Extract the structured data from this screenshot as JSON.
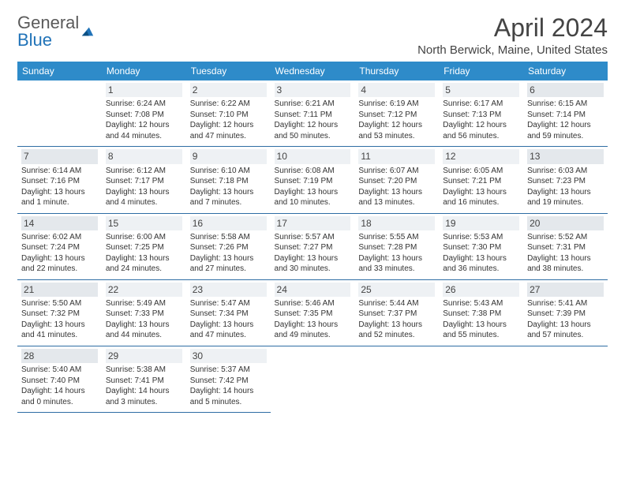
{
  "colors": {
    "header_bg": "#2e8bc9",
    "header_text": "#ffffff",
    "border": "#2e6da4",
    "daynum_bg": "#eef1f4",
    "daynum_bg_shade": "#e4e8ec",
    "text": "#333333",
    "logo_gray": "#5a5a5a",
    "logo_blue": "#2173b8"
  },
  "logo": {
    "word1": "General",
    "word2": "Blue"
  },
  "title": "April 2024",
  "location": "North Berwick, Maine, United States",
  "day_headers": [
    "Sunday",
    "Monday",
    "Tuesday",
    "Wednesday",
    "Thursday",
    "Friday",
    "Saturday"
  ],
  "weeks": [
    [
      null,
      {
        "n": "1",
        "sr": "Sunrise: 6:24 AM",
        "ss": "Sunset: 7:08 PM",
        "d1": "Daylight: 12 hours",
        "d2": "and 44 minutes."
      },
      {
        "n": "2",
        "sr": "Sunrise: 6:22 AM",
        "ss": "Sunset: 7:10 PM",
        "d1": "Daylight: 12 hours",
        "d2": "and 47 minutes."
      },
      {
        "n": "3",
        "sr": "Sunrise: 6:21 AM",
        "ss": "Sunset: 7:11 PM",
        "d1": "Daylight: 12 hours",
        "d2": "and 50 minutes."
      },
      {
        "n": "4",
        "sr": "Sunrise: 6:19 AM",
        "ss": "Sunset: 7:12 PM",
        "d1": "Daylight: 12 hours",
        "d2": "and 53 minutes."
      },
      {
        "n": "5",
        "sr": "Sunrise: 6:17 AM",
        "ss": "Sunset: 7:13 PM",
        "d1": "Daylight: 12 hours",
        "d2": "and 56 minutes."
      },
      {
        "n": "6",
        "sr": "Sunrise: 6:15 AM",
        "ss": "Sunset: 7:14 PM",
        "d1": "Daylight: 12 hours",
        "d2": "and 59 minutes."
      }
    ],
    [
      {
        "n": "7",
        "sr": "Sunrise: 6:14 AM",
        "ss": "Sunset: 7:16 PM",
        "d1": "Daylight: 13 hours",
        "d2": "and 1 minute."
      },
      {
        "n": "8",
        "sr": "Sunrise: 6:12 AM",
        "ss": "Sunset: 7:17 PM",
        "d1": "Daylight: 13 hours",
        "d2": "and 4 minutes."
      },
      {
        "n": "9",
        "sr": "Sunrise: 6:10 AM",
        "ss": "Sunset: 7:18 PM",
        "d1": "Daylight: 13 hours",
        "d2": "and 7 minutes."
      },
      {
        "n": "10",
        "sr": "Sunrise: 6:08 AM",
        "ss": "Sunset: 7:19 PM",
        "d1": "Daylight: 13 hours",
        "d2": "and 10 minutes."
      },
      {
        "n": "11",
        "sr": "Sunrise: 6:07 AM",
        "ss": "Sunset: 7:20 PM",
        "d1": "Daylight: 13 hours",
        "d2": "and 13 minutes."
      },
      {
        "n": "12",
        "sr": "Sunrise: 6:05 AM",
        "ss": "Sunset: 7:21 PM",
        "d1": "Daylight: 13 hours",
        "d2": "and 16 minutes."
      },
      {
        "n": "13",
        "sr": "Sunrise: 6:03 AM",
        "ss": "Sunset: 7:23 PM",
        "d1": "Daylight: 13 hours",
        "d2": "and 19 minutes."
      }
    ],
    [
      {
        "n": "14",
        "sr": "Sunrise: 6:02 AM",
        "ss": "Sunset: 7:24 PM",
        "d1": "Daylight: 13 hours",
        "d2": "and 22 minutes."
      },
      {
        "n": "15",
        "sr": "Sunrise: 6:00 AM",
        "ss": "Sunset: 7:25 PM",
        "d1": "Daylight: 13 hours",
        "d2": "and 24 minutes."
      },
      {
        "n": "16",
        "sr": "Sunrise: 5:58 AM",
        "ss": "Sunset: 7:26 PM",
        "d1": "Daylight: 13 hours",
        "d2": "and 27 minutes."
      },
      {
        "n": "17",
        "sr": "Sunrise: 5:57 AM",
        "ss": "Sunset: 7:27 PM",
        "d1": "Daylight: 13 hours",
        "d2": "and 30 minutes."
      },
      {
        "n": "18",
        "sr": "Sunrise: 5:55 AM",
        "ss": "Sunset: 7:28 PM",
        "d1": "Daylight: 13 hours",
        "d2": "and 33 minutes."
      },
      {
        "n": "19",
        "sr": "Sunrise: 5:53 AM",
        "ss": "Sunset: 7:30 PM",
        "d1": "Daylight: 13 hours",
        "d2": "and 36 minutes."
      },
      {
        "n": "20",
        "sr": "Sunrise: 5:52 AM",
        "ss": "Sunset: 7:31 PM",
        "d1": "Daylight: 13 hours",
        "d2": "and 38 minutes."
      }
    ],
    [
      {
        "n": "21",
        "sr": "Sunrise: 5:50 AM",
        "ss": "Sunset: 7:32 PM",
        "d1": "Daylight: 13 hours",
        "d2": "and 41 minutes."
      },
      {
        "n": "22",
        "sr": "Sunrise: 5:49 AM",
        "ss": "Sunset: 7:33 PM",
        "d1": "Daylight: 13 hours",
        "d2": "and 44 minutes."
      },
      {
        "n": "23",
        "sr": "Sunrise: 5:47 AM",
        "ss": "Sunset: 7:34 PM",
        "d1": "Daylight: 13 hours",
        "d2": "and 47 minutes."
      },
      {
        "n": "24",
        "sr": "Sunrise: 5:46 AM",
        "ss": "Sunset: 7:35 PM",
        "d1": "Daylight: 13 hours",
        "d2": "and 49 minutes."
      },
      {
        "n": "25",
        "sr": "Sunrise: 5:44 AM",
        "ss": "Sunset: 7:37 PM",
        "d1": "Daylight: 13 hours",
        "d2": "and 52 minutes."
      },
      {
        "n": "26",
        "sr": "Sunrise: 5:43 AM",
        "ss": "Sunset: 7:38 PM",
        "d1": "Daylight: 13 hours",
        "d2": "and 55 minutes."
      },
      {
        "n": "27",
        "sr": "Sunrise: 5:41 AM",
        "ss": "Sunset: 7:39 PM",
        "d1": "Daylight: 13 hours",
        "d2": "and 57 minutes."
      }
    ],
    [
      {
        "n": "28",
        "sr": "Sunrise: 5:40 AM",
        "ss": "Sunset: 7:40 PM",
        "d1": "Daylight: 14 hours",
        "d2": "and 0 minutes."
      },
      {
        "n": "29",
        "sr": "Sunrise: 5:38 AM",
        "ss": "Sunset: 7:41 PM",
        "d1": "Daylight: 14 hours",
        "d2": "and 3 minutes."
      },
      {
        "n": "30",
        "sr": "Sunrise: 5:37 AM",
        "ss": "Sunset: 7:42 PM",
        "d1": "Daylight: 14 hours",
        "d2": "and 5 minutes."
      },
      null,
      null,
      null,
      null
    ]
  ]
}
